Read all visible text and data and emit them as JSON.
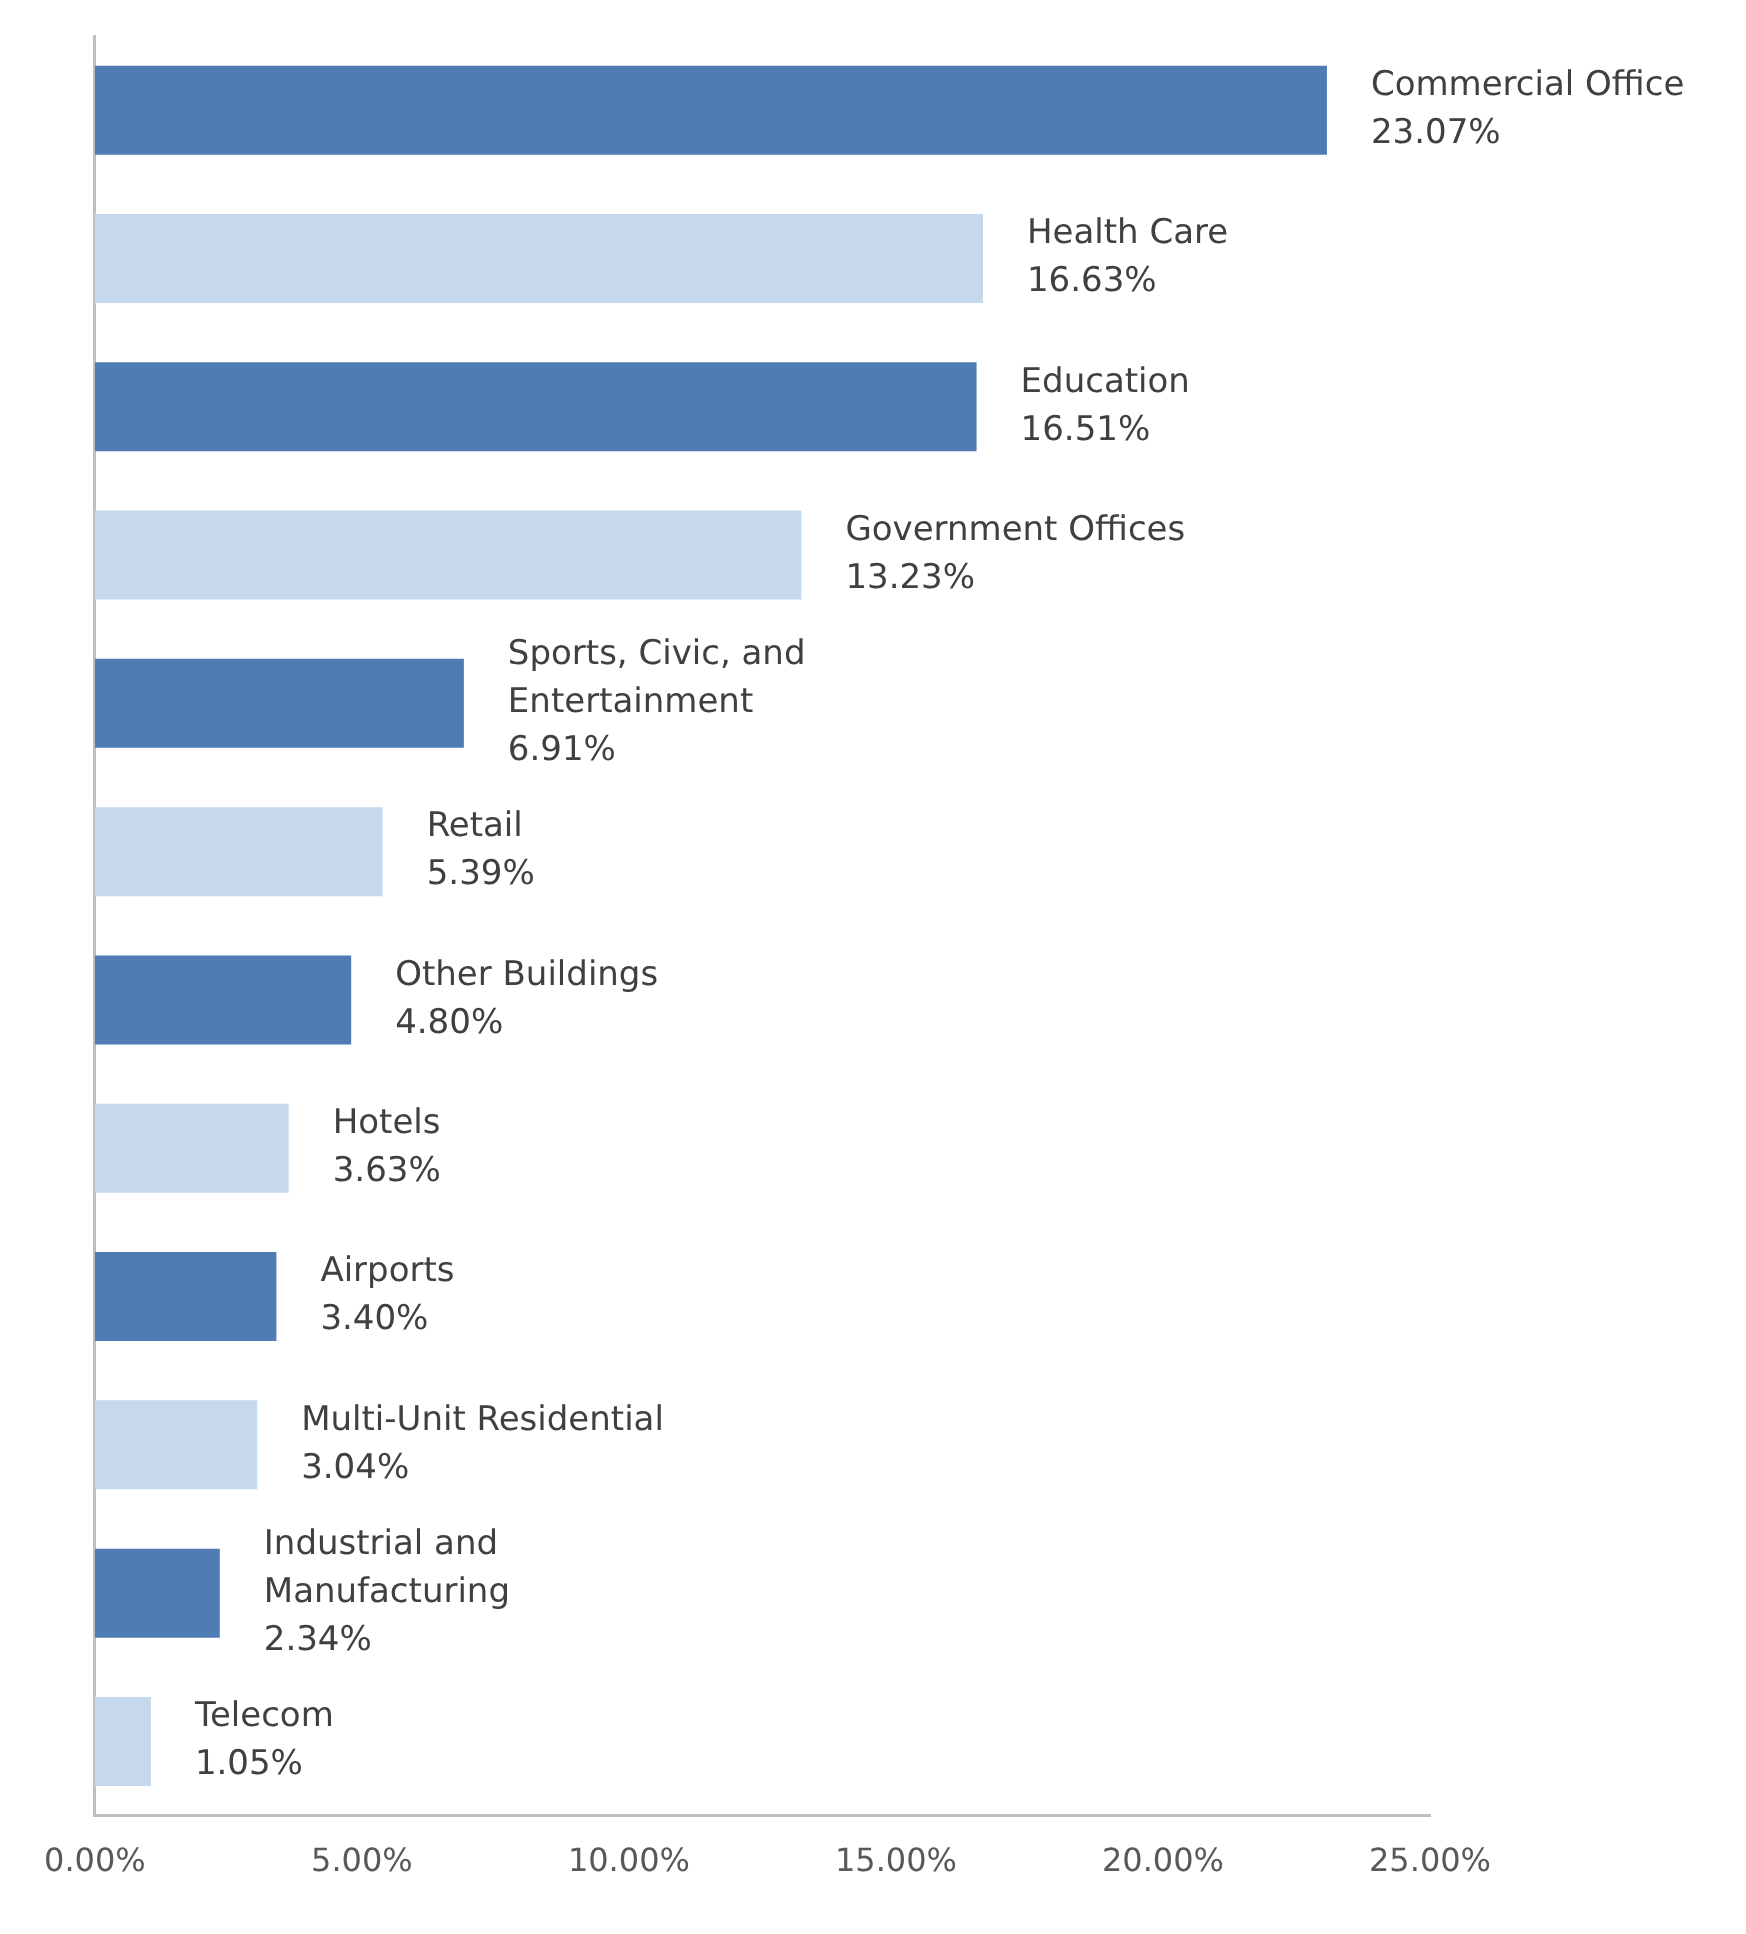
{
  "chart_data": {
    "type": "bar",
    "orientation": "horizontal",
    "categories": [
      "Commercial Office",
      "Health Care",
      "Education",
      "Government Offices",
      "Sports, Civic, and Entertainment",
      "Retail",
      "Other Buildings",
      "Hotels",
      "Airports",
      "Multi-Unit Residential",
      "Industrial and Manufacturing",
      "Telecom"
    ],
    "values": [
      23.07,
      16.63,
      16.51,
      13.23,
      6.91,
      5.39,
      4.8,
      3.63,
      3.4,
      3.04,
      2.34,
      1.05
    ],
    "value_labels": [
      "23.07%",
      "16.63%",
      "16.51%",
      "13.23%",
      "6.91%",
      "5.39%",
      "4.80%",
      "3.63%",
      "3.40%",
      "3.04%",
      "2.34%",
      "1.05%"
    ],
    "colors": [
      "#4f7db3",
      "#c5d8ec",
      "#4f7db3",
      "#c5d8ec",
      "#4f7db3",
      "#c5d8ec",
      "#4f7db3",
      "#c5d8ec",
      "#4f7db3",
      "#c5d8ec",
      "#4f7db3",
      "#c5d8ec"
    ],
    "xlim": [
      0,
      25
    ],
    "xticks": [
      {
        "value": 0,
        "label": "0.00%"
      },
      {
        "value": 5,
        "label": "5.00%"
      },
      {
        "value": 10,
        "label": "10.00%"
      },
      {
        "value": 15,
        "label": "15.00%"
      },
      {
        "value": 20,
        "label": "20.00%"
      },
      {
        "value": 25,
        "label": "25.00%"
      }
    ],
    "tick_labels": "x",
    "grid": false,
    "legend": false
  }
}
